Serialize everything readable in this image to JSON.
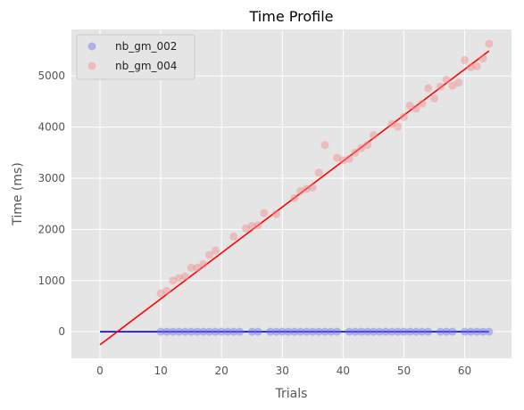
{
  "chart_data": {
    "type": "scatter",
    "title": "Time Profile",
    "xlabel": "Trials",
    "ylabel": "Time (ms)",
    "xlim": [
      -4.7,
      67.7
    ],
    "ylim": [
      -520,
      5910
    ],
    "xticks": [
      0,
      10,
      20,
      30,
      40,
      50,
      60
    ],
    "yticks": [
      0,
      1000,
      2000,
      3000,
      4000,
      5000
    ],
    "xtick_labels": [
      "0",
      "10",
      "20",
      "30",
      "40",
      "50",
      "60"
    ],
    "ytick_labels": [
      "0",
      "1000",
      "2000",
      "3000",
      "4000",
      "5000"
    ],
    "grid": true,
    "legend_position": "top-left",
    "series": [
      {
        "name": "nb_gm_002",
        "color": "#6f6fe8",
        "x": [
          10,
          11,
          12,
          13,
          14,
          15,
          16,
          17,
          18,
          19,
          20,
          21,
          22,
          23,
          25,
          26,
          28,
          29,
          30,
          31,
          32,
          33,
          34,
          35,
          36,
          37,
          38,
          39,
          41,
          42,
          43,
          44,
          45,
          46,
          47,
          48,
          49,
          50,
          51,
          52,
          53,
          54,
          56,
          57,
          58,
          60,
          61,
          62,
          63,
          64
        ],
        "y": [
          0,
          0,
          0,
          0,
          0,
          0,
          0,
          0,
          0,
          0,
          0,
          0,
          0,
          0,
          0,
          0,
          0,
          0,
          0,
          0,
          0,
          0,
          0,
          0,
          0,
          0,
          0,
          0,
          0,
          0,
          0,
          0,
          0,
          0,
          0,
          0,
          0,
          0,
          0,
          0,
          0,
          0,
          0,
          0,
          0,
          0,
          0,
          0,
          0,
          0
        ]
      },
      {
        "name": "nb_gm_004",
        "color": "#f08a8a",
        "x": [
          10,
          11,
          12,
          13,
          14,
          15,
          16,
          17,
          18,
          19,
          22,
          24,
          25,
          26,
          27,
          29,
          32,
          33,
          34,
          35,
          36,
          37,
          39,
          40,
          41,
          42,
          43,
          44,
          45,
          48,
          49,
          50,
          51,
          52,
          53,
          54,
          55,
          56,
          57,
          58,
          59,
          60,
          61,
          62,
          63,
          64
        ],
        "y": [
          750,
          800,
          1000,
          1050,
          1080,
          1250,
          1250,
          1320,
          1500,
          1590,
          1860,
          2020,
          2070,
          2080,
          2320,
          2300,
          2610,
          2750,
          2790,
          2820,
          3110,
          3650,
          3400,
          3350,
          3380,
          3500,
          3590,
          3650,
          3840,
          4060,
          4010,
          4200,
          4420,
          4360,
          4460,
          4760,
          4560,
          4790,
          4930,
          4810,
          4870,
          5310,
          5170,
          5190,
          5340,
          5630
        ]
      }
    ],
    "fit_lines": [
      {
        "series": "nb_gm_002",
        "color": "#0000ff",
        "x": [
          0,
          64
        ],
        "y": [
          0,
          0
        ]
      },
      {
        "series": "nb_gm_004",
        "color": "#ff0000",
        "x": [
          0,
          64
        ],
        "y": [
          -255,
          5490
        ]
      }
    ]
  }
}
